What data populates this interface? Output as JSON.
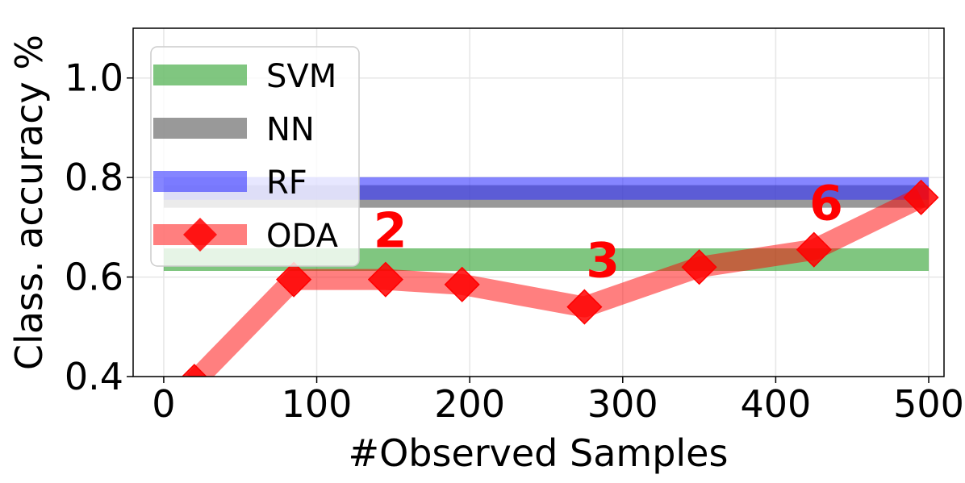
{
  "chart_data": {
    "type": "line",
    "title": "",
    "xlabel": "#Observed Samples",
    "ylabel": "Class. accuracy %",
    "xlim": [
      -20,
      510
    ],
    "ylim": [
      0.4,
      1.1
    ],
    "xticks": [
      0,
      100,
      200,
      300,
      400,
      500
    ],
    "yticks": [
      0.4,
      0.6,
      0.8,
      1.0
    ],
    "xtick_labels": [
      "0",
      "100",
      "200",
      "300",
      "400",
      "500"
    ],
    "ytick_labels": [
      "0.4",
      "0.6",
      "0.8",
      "1.0"
    ],
    "grid": true,
    "legend_position": "top-left",
    "series": [
      {
        "name": "SVM",
        "kind": "hline",
        "x": [
          0,
          500
        ],
        "values": [
          0.635,
          0.635
        ],
        "color": "#2ca02c"
      },
      {
        "name": "NN",
        "kind": "hline",
        "x": [
          0,
          500
        ],
        "values": [
          0.762,
          0.762
        ],
        "color": "#555555"
      },
      {
        "name": "RF",
        "kind": "hline",
        "x": [
          0,
          500
        ],
        "values": [
          0.778,
          0.778
        ],
        "color": "#3333ff"
      },
      {
        "name": "ODA",
        "kind": "line_markers",
        "x": [
          20,
          85,
          145,
          195,
          275,
          350,
          425,
          495
        ],
        "values": [
          0.39,
          0.595,
          0.595,
          0.585,
          0.54,
          0.62,
          0.655,
          0.76
        ],
        "color": "#ff0000"
      }
    ],
    "annotations": [
      {
        "text": "2",
        "x": 148,
        "y": 0.66
      },
      {
        "text": "3",
        "x": 287,
        "y": 0.6
      },
      {
        "text": "6",
        "x": 433,
        "y": 0.715
      }
    ]
  }
}
